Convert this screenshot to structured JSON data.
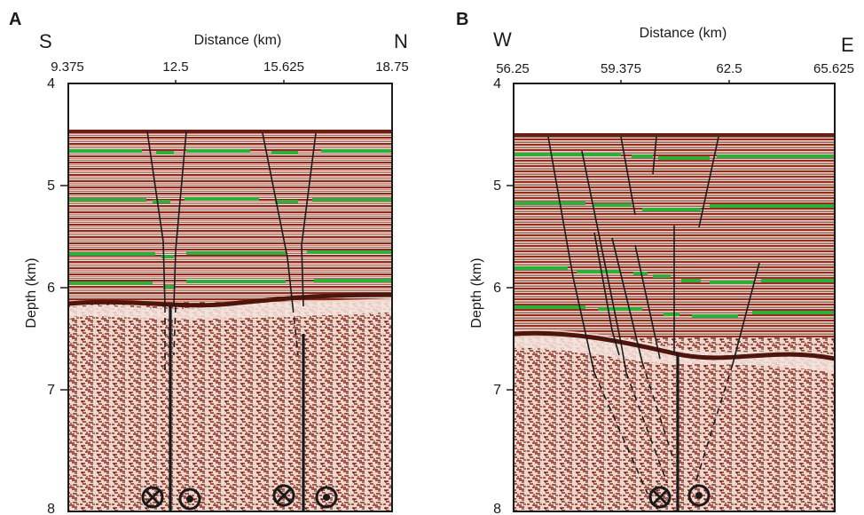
{
  "figure": {
    "panels": [
      {
        "id": "A",
        "letter": "A",
        "dir_left": "S",
        "dir_right": "N",
        "xlabel": "Distance (km)",
        "ylabel": "Depth (km)",
        "x_ticks": [
          "9.375",
          "12.5",
          "15.625",
          "18.75"
        ],
        "y_ticks": [
          "4",
          "5",
          "6",
          "7",
          "8"
        ],
        "x_range": [
          9.375,
          18.75
        ],
        "y_range": [
          4,
          8
        ],
        "seafloor_depth": 4.45,
        "basement_depth": 6.25,
        "horizon_depths": [
          4.65,
          5.15,
          5.7,
          5.98
        ],
        "horizon_color": "#2fae3c",
        "seismic_color": "#9b2c1e",
        "strike_slip_symbols": [
          "into-page",
          "out-of-page",
          "into-page",
          "out-of-page"
        ]
      },
      {
        "id": "B",
        "letter": "B",
        "dir_left": "W",
        "dir_right": "E",
        "xlabel": "Distance (km)",
        "ylabel": "Depth (km)",
        "x_ticks": [
          "56.25",
          "59.375",
          "62.5",
          "65.625"
        ],
        "y_ticks": [
          "4",
          "5",
          "6",
          "7",
          "8"
        ],
        "x_range": [
          56.25,
          65.625
        ],
        "y_range": [
          4,
          8
        ],
        "seafloor_depth": 4.5,
        "basement_depth": 6.55,
        "horizon_depths": [
          4.7,
          5.2,
          5.85,
          6.25
        ],
        "horizon_color": "#2fae3c",
        "seismic_color": "#9b2c1e",
        "strike_slip_symbols": [
          "into-page",
          "out-of-page"
        ]
      }
    ]
  }
}
